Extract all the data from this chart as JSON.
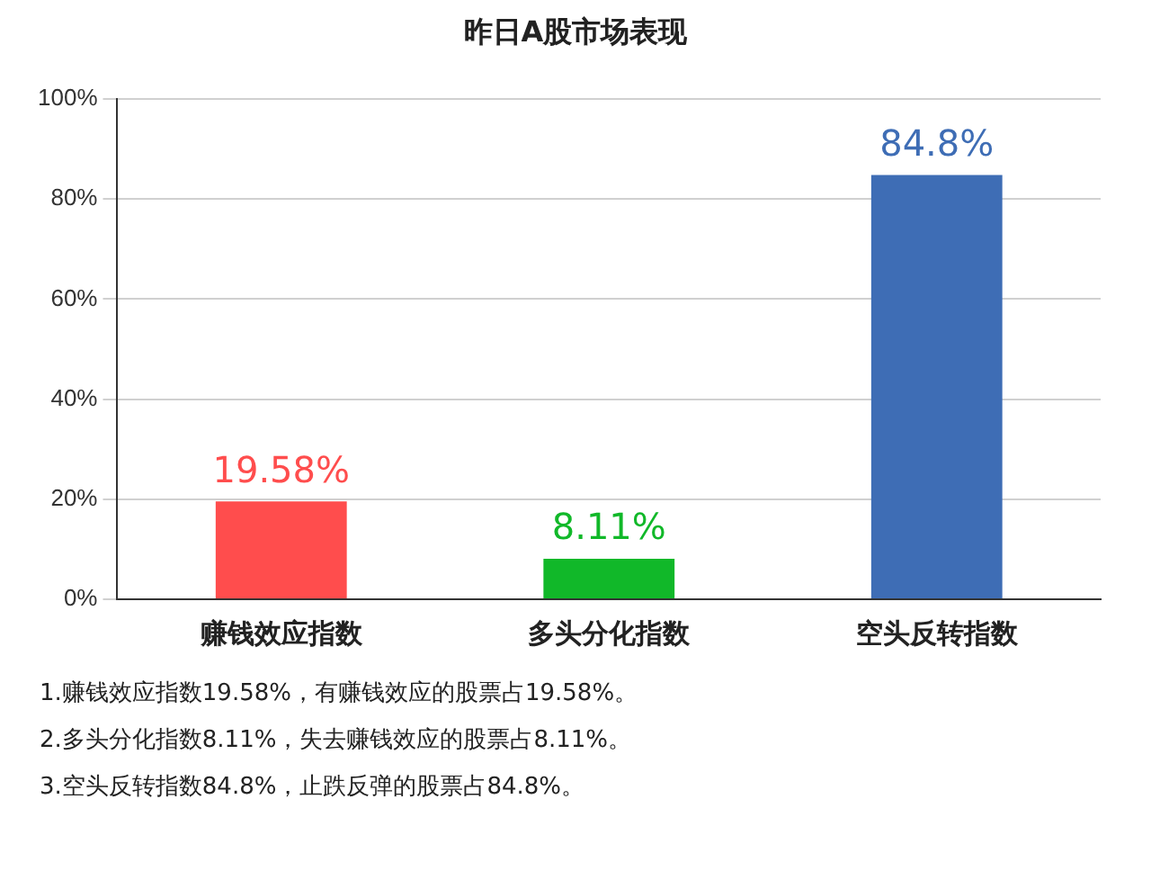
{
  "chart_data": {
    "type": "bar",
    "title": "昨日A股市场表现",
    "categories": [
      "赚钱效应指数",
      "多头分化指数",
      "空头反转指数"
    ],
    "values": [
      19.58,
      8.11,
      84.8
    ],
    "colors": [
      "#ff4d4d",
      "#11b829",
      "#3e6db5"
    ],
    "value_labels": [
      "19.58%",
      "8.11%",
      "84.8%"
    ],
    "ylim": [
      0,
      100
    ],
    "yticks": [
      {
        "value": 0,
        "label": "0%"
      },
      {
        "value": 20,
        "label": "20%"
      },
      {
        "value": 40,
        "label": "40%"
      },
      {
        "value": 60,
        "label": "60%"
      },
      {
        "value": 80,
        "label": "80%"
      },
      {
        "value": 100,
        "label": "100%"
      }
    ],
    "grid": "y",
    "legend": false,
    "annotations": [
      "1.赚钱效应指数19.58%，有赚钱效应的股票占19.58%。",
      "2.多头分化指数8.11%，失去赚钱效应的股票占8.11%。",
      "3.空头反转指数84.8%，止跌反弹的股票占84.8%。"
    ]
  }
}
